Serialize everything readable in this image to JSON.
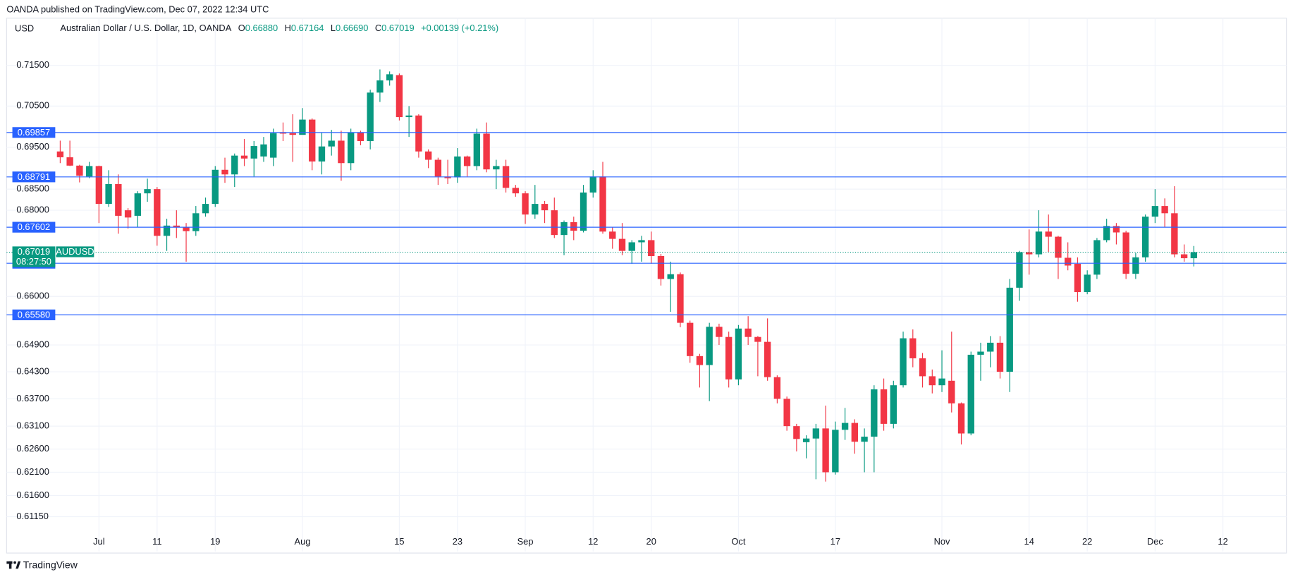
{
  "header": {
    "publisher": "OANDA published on TradingView.com, Dec 07, 2022 12:34 UTC"
  },
  "chart_data": {
    "type": "candlestick",
    "currency": "USD",
    "legend": {
      "symbol": "Australian Dollar / U.S. Dollar, 1D, OANDA",
      "o_label": "O",
      "o": "0.66880",
      "h_label": "H",
      "h": "0.67164",
      "l_label": "L",
      "l": "0.66690",
      "c_label": "C",
      "c": "0.67019",
      "change": "+0.00139 (+0.21%)"
    },
    "categories": [
      null,
      null,
      null,
      null,
      "Jul",
      null,
      null,
      null,
      null,
      null,
      "11",
      null,
      null,
      null,
      null,
      null,
      "19",
      null,
      null,
      null,
      null,
      null,
      null,
      null,
      null,
      "Aug",
      null,
      null,
      null,
      null,
      null,
      null,
      null,
      null,
      null,
      "15",
      null,
      null,
      null,
      null,
      null,
      "23",
      null,
      null,
      null,
      null,
      null,
      null,
      "Sep",
      null,
      null,
      null,
      null,
      null,
      null,
      "12",
      null,
      null,
      null,
      null,
      null,
      "20",
      null,
      null,
      null,
      null,
      null,
      null,
      null,
      null,
      "Oct",
      null,
      null,
      null,
      null,
      null,
      null,
      null,
      null,
      null,
      "17",
      null,
      null,
      null,
      null,
      null,
      null,
      null,
      null,
      null,
      null,
      "Nov",
      null,
      null,
      null,
      null,
      null,
      null,
      null,
      null,
      "14",
      null,
      null,
      null,
      null,
      null,
      "22",
      null,
      null,
      null,
      null,
      null,
      null,
      "Dec",
      null,
      null,
      null,
      null,
      null,
      null,
      "12",
      null,
      null,
      null,
      null
    ],
    "open": [
      0.694,
      0.6926,
      0.6906,
      0.688,
      0.6905,
      0.6815,
      0.6862,
      0.68,
      0.6787,
      0.684,
      0.685,
      0.674,
      0.6764,
      0.676,
      0.6751,
      0.6793,
      0.6815,
      0.6896,
      0.6885,
      0.693,
      0.6923,
      0.6928,
      0.6925,
      0.6986,
      0.6984,
      0.698,
      0.7017,
      0.6916,
      0.6952,
      0.6966,
      0.6912,
      0.6985,
      0.6965,
      0.7083,
      0.7113,
      0.7126,
      0.7023,
      0.7027,
      0.694,
      0.692,
      0.688,
      0.6878,
      0.6928,
      0.6905,
      0.6983,
      0.6897,
      0.6905,
      0.6853,
      0.684,
      0.679,
      0.6815,
      0.68,
      0.6742,
      0.6772,
      0.6752,
      0.6842,
      0.688,
      0.675,
      0.6733,
      0.6705,
      0.6725,
      0.673,
      0.6693,
      0.664,
      0.6651,
      0.654,
      0.6465,
      0.6445,
      0.6531,
      0.6508,
      0.6413,
      0.6527,
      0.6508,
      0.6497,
      0.6418,
      0.637,
      0.631,
      0.6275,
      0.6283,
      0.6305,
      0.621,
      0.6302,
      0.6317,
      0.6276,
      0.6287,
      0.6391,
      0.6315,
      0.64,
      0.6505,
      0.646,
      0.642,
      0.64,
      0.641,
      0.636,
      0.6294,
      0.6468,
      0.6475,
      0.6495,
      0.643,
      0.662,
      0.6702,
      0.6697,
      0.675,
      0.6738,
      0.6689,
      0.6675,
      0.661,
      0.665,
      0.673,
      0.6763,
      0.6748,
      0.6652,
      0.669,
      0.6785,
      0.681,
      0.6793,
      0.6697,
      0.6688,
      null,
      null,
      null,
      null,
      null,
      null,
      null
    ],
    "high": [
      0.6966,
      0.6966,
      0.6908,
      0.6915,
      0.6906,
      0.6895,
      0.6885,
      0.6805,
      0.6845,
      0.6875,
      0.6855,
      0.678,
      0.68,
      0.677,
      0.681,
      0.683,
      0.6905,
      0.6925,
      0.6935,
      0.697,
      0.6965,
      0.6975,
      0.6995,
      0.701,
      0.703,
      0.7045,
      0.702,
      0.6985,
      0.6992,
      0.699,
      0.6995,
      0.699,
      0.709,
      0.714,
      0.7135,
      0.713,
      0.705,
      0.703,
      0.6945,
      0.6925,
      0.692,
      0.6948,
      0.693,
      0.6995,
      0.701,
      0.692,
      0.692,
      0.686,
      0.6845,
      0.686,
      0.6822,
      0.683,
      0.6776,
      0.6785,
      0.686,
      0.6895,
      0.6915,
      0.676,
      0.677,
      0.673,
      0.674,
      0.675,
      0.6698,
      0.668,
      0.6655,
      0.6545,
      0.647,
      0.654,
      0.6538,
      0.652,
      0.6535,
      0.6555,
      0.651,
      0.655,
      0.6422,
      0.6375,
      0.6315,
      0.629,
      0.6315,
      0.6355,
      0.632,
      0.635,
      0.6325,
      0.6305,
      0.64,
      0.6415,
      0.641,
      0.652,
      0.6525,
      0.6472,
      0.6435,
      0.6478,
      0.652,
      0.6362,
      0.6475,
      0.6495,
      0.651,
      0.651,
      0.664,
      0.6705,
      0.6755,
      0.68,
      0.679,
      0.674,
      0.6725,
      0.669,
      0.666,
      0.6735,
      0.678,
      0.677,
      0.6752,
      0.67,
      0.679,
      0.685,
      0.6828,
      0.6857,
      0.672,
      0.67164,
      null,
      null,
      null,
      null,
      null,
      null,
      null
    ],
    "low": [
      0.6912,
      0.6905,
      0.6866,
      0.6876,
      0.677,
      0.6808,
      0.6745,
      0.6757,
      0.676,
      0.682,
      0.6717,
      0.6705,
      0.6735,
      0.668,
      0.674,
      0.6785,
      0.6808,
      0.6865,
      0.6855,
      0.6905,
      0.688,
      0.6915,
      0.6905,
      0.6965,
      0.6915,
      0.6985,
      0.6895,
      0.6885,
      0.693,
      0.687,
      0.6895,
      0.6955,
      0.6945,
      0.706,
      0.71,
      0.7015,
      0.6975,
      0.6925,
      0.69,
      0.686,
      0.6862,
      0.6865,
      0.688,
      0.6895,
      0.689,
      0.685,
      0.6842,
      0.6832,
      0.6768,
      0.678,
      0.677,
      0.6735,
      0.6695,
      0.673,
      0.6748,
      0.683,
      0.6745,
      0.671,
      0.6695,
      0.6675,
      0.668,
      0.6675,
      0.6625,
      0.6565,
      0.653,
      0.645,
      0.6395,
      0.6365,
      0.649,
      0.6395,
      0.64,
      0.649,
      0.642,
      0.641,
      0.636,
      0.63,
      0.6255,
      0.624,
      0.6195,
      0.619,
      0.6205,
      0.628,
      0.625,
      0.621,
      0.621,
      0.63,
      0.6305,
      0.6395,
      0.644,
      0.6395,
      0.6382,
      0.6385,
      0.634,
      0.627,
      0.629,
      0.641,
      0.644,
      0.6415,
      0.6385,
      0.659,
      0.665,
      0.669,
      0.6702,
      0.664,
      0.666,
      0.6588,
      0.6605,
      0.664,
      0.6725,
      0.672,
      0.664,
      0.664,
      0.668,
      0.677,
      0.676,
      0.669,
      0.668,
      0.6669,
      null,
      null,
      null,
      null,
      null,
      null,
      null
    ],
    "close": [
      0.6926,
      0.6906,
      0.6882,
      0.6905,
      0.6815,
      0.6862,
      0.6787,
      0.6783,
      0.684,
      0.685,
      0.674,
      0.6764,
      0.676,
      0.6751,
      0.6793,
      0.6815,
      0.6896,
      0.6885,
      0.693,
      0.6923,
      0.6953,
      0.6957,
      0.6984,
      0.6983,
      0.698,
      0.7017,
      0.6916,
      0.6952,
      0.6966,
      0.6912,
      0.6985,
      0.6965,
      0.7083,
      0.7113,
      0.7128,
      0.7023,
      0.7027,
      0.694,
      0.692,
      0.688,
      0.6876,
      0.6928,
      0.6905,
      0.6983,
      0.6897,
      0.6905,
      0.6853,
      0.684,
      0.679,
      0.6815,
      0.68,
      0.6742,
      0.6772,
      0.6752,
      0.6842,
      0.688,
      0.675,
      0.6733,
      0.6705,
      0.6725,
      0.673,
      0.6693,
      0.664,
      0.6651,
      0.654,
      0.6465,
      0.6445,
      0.6531,
      0.6508,
      0.6413,
      0.6527,
      0.6508,
      0.6497,
      0.6418,
      0.637,
      0.631,
      0.6282,
      0.6283,
      0.6305,
      0.621,
      0.6302,
      0.6317,
      0.6276,
      0.6287,
      0.6391,
      0.6315,
      0.64,
      0.6505,
      0.646,
      0.642,
      0.64,
      0.6415,
      0.636,
      0.6294,
      0.6468,
      0.6475,
      0.6495,
      0.643,
      0.662,
      0.6702,
      0.6697,
      0.675,
      0.6738,
      0.6689,
      0.6671,
      0.661,
      0.665,
      0.673,
      0.6763,
      0.6748,
      0.6652,
      0.669,
      0.6785,
      0.681,
      0.6793,
      0.6697,
      0.6688,
      0.67019,
      null,
      null,
      null,
      null,
      null,
      null,
      null
    ],
    "up_color": "#089981",
    "down_color": "#f23645",
    "ylim": [
      0.6042,
      0.7268
    ],
    "log_y": true,
    "yticks": [
      {
        "value": 0.715,
        "label": "0.71500"
      },
      {
        "value": 0.705,
        "label": "0.70500"
      },
      {
        "value": 0.695,
        "label": "0.69500"
      },
      {
        "value": 0.685,
        "label": "0.68500"
      },
      {
        "value": 0.68,
        "label": "0.68000"
      },
      {
        "value": 0.66,
        "label": "0.66000"
      },
      {
        "value": 0.649,
        "label": "0.64900"
      },
      {
        "value": 0.643,
        "label": "0.64300"
      },
      {
        "value": 0.637,
        "label": "0.63700"
      },
      {
        "value": 0.631,
        "label": "0.63100"
      },
      {
        "value": 0.626,
        "label": "0.62600"
      },
      {
        "value": 0.621,
        "label": "0.62100"
      },
      {
        "value": 0.616,
        "label": "0.61600"
      },
      {
        "value": 0.6115,
        "label": "0.61150"
      }
    ],
    "grid": true,
    "levels": [
      0.69857,
      0.68791,
      0.67602,
      0.66764,
      {
        "value": 0.6558,
        "label": "0.65580"
      }
    ],
    "level_color": "#2962ff",
    "last_price": 0.67019,
    "symbol": "AUDUSD",
    "countdown": "08:27:50"
  },
  "footer": {
    "brand": "TradingView"
  }
}
